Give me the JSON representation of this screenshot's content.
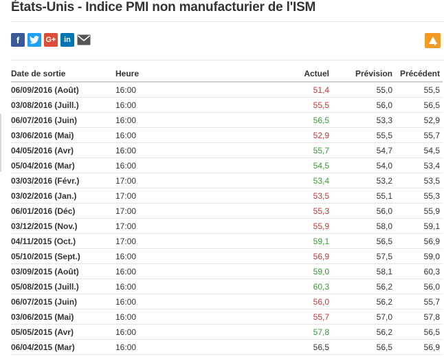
{
  "title": "États-Unis - Indice PMI non manufacturier de l'ISM",
  "share": {
    "facebook": "f",
    "twitter": "t",
    "googleplus": "G+",
    "linkedin": "in",
    "email": "email-icon"
  },
  "colors": {
    "red": "#d32f2f",
    "green": "#2e9e2e",
    "accent": "#f39a24"
  },
  "table": {
    "headers": [
      "Date de sortie",
      "Heure",
      "Actuel",
      "Prévision",
      "Précédent"
    ],
    "rows": [
      {
        "date": "06/09/2016 (Août)",
        "time": "16:00",
        "actual": "51,4",
        "forecast": "55,0",
        "previous": "55,5",
        "status": "red"
      },
      {
        "date": "03/08/2016 (Juill.)",
        "time": "16:00",
        "actual": "55,5",
        "forecast": "56,0",
        "previous": "56,5",
        "status": "red"
      },
      {
        "date": "06/07/2016 (Juin)",
        "time": "16:00",
        "actual": "56,5",
        "forecast": "53,3",
        "previous": "52,9",
        "status": "green"
      },
      {
        "date": "03/06/2016 (Mai)",
        "time": "16:00",
        "actual": "52,9",
        "forecast": "55,5",
        "previous": "55,7",
        "status": "red"
      },
      {
        "date": "04/05/2016 (Avr)",
        "time": "16:00",
        "actual": "55,7",
        "forecast": "54,7",
        "previous": "54,5",
        "status": "green"
      },
      {
        "date": "05/04/2016 (Mar)",
        "time": "16:00",
        "actual": "54,5",
        "forecast": "54,0",
        "previous": "53,4",
        "status": "green"
      },
      {
        "date": "03/03/2016 (Févr.)",
        "time": "17:00",
        "actual": "53,4",
        "forecast": "53,2",
        "previous": "53,5",
        "status": "green"
      },
      {
        "date": "03/02/2016 (Jan.)",
        "time": "17:00",
        "actual": "53,5",
        "forecast": "55,1",
        "previous": "55,3",
        "status": "red"
      },
      {
        "date": "06/01/2016 (Déc)",
        "time": "17:00",
        "actual": "55,3",
        "forecast": "56,0",
        "previous": "55,9",
        "status": "red"
      },
      {
        "date": "03/12/2015 (Nov.)",
        "time": "17:00",
        "actual": "55,9",
        "forecast": "58,0",
        "previous": "59,1",
        "status": "red"
      },
      {
        "date": "04/11/2015 (Oct.)",
        "time": "17:00",
        "actual": "59,1",
        "forecast": "56,5",
        "previous": "56,9",
        "status": "green"
      },
      {
        "date": "05/10/2015 (Sept.)",
        "time": "16:00",
        "actual": "56,9",
        "forecast": "57,5",
        "previous": "59,0",
        "status": "red"
      },
      {
        "date": "03/09/2015 (Août)",
        "time": "16:00",
        "actual": "59,0",
        "forecast": "58,1",
        "previous": "60,3",
        "status": "green"
      },
      {
        "date": "05/08/2015 (Juill.)",
        "time": "16:00",
        "actual": "60,3",
        "forecast": "56,2",
        "previous": "56,0",
        "status": "green"
      },
      {
        "date": "06/07/2015 (Juin)",
        "time": "16:00",
        "actual": "56,0",
        "forecast": "56,2",
        "previous": "55,7",
        "status": "red"
      },
      {
        "date": "03/06/2015 (Mai)",
        "time": "16:00",
        "actual": "55,7",
        "forecast": "57,0",
        "previous": "57,8",
        "status": "red"
      },
      {
        "date": "05/05/2015 (Avr)",
        "time": "16:00",
        "actual": "57,8",
        "forecast": "56,2",
        "previous": "56,5",
        "status": "green"
      },
      {
        "date": "06/04/2015 (Mar)",
        "time": "16:00",
        "actual": "56,5",
        "forecast": "56,5",
        "previous": "56,9",
        "status": "neutral"
      }
    ]
  }
}
